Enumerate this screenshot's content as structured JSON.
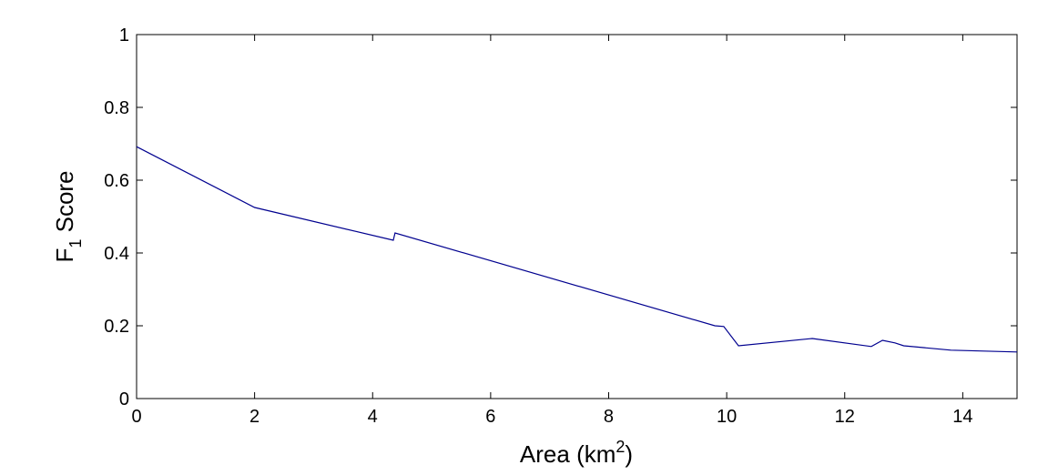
{
  "chart_data": {
    "type": "line",
    "xlabel": {
      "main": "Area (km",
      "sup": "2",
      "after": ")"
    },
    "ylabel": {
      "main": "F",
      "sub": "1",
      "after": " Score"
    },
    "series": [
      {
        "color": "#00008f",
        "x": [
          0,
          2,
          4.35,
          4.38,
          9.8,
          9.95,
          10.2,
          11.45,
          12.45,
          12.64,
          12.85,
          13.0,
          13.8,
          14.92
        ],
        "values": [
          0.692,
          0.525,
          0.435,
          0.455,
          0.2,
          0.198,
          0.145,
          0.165,
          0.143,
          0.16,
          0.153,
          0.145,
          0.133,
          0.128
        ]
      }
    ],
    "xlim": [
      0,
      14.92
    ],
    "ylim": [
      0,
      1
    ],
    "xticks": [
      0,
      2,
      4,
      6,
      8,
      10,
      12,
      14
    ],
    "yticks": [
      0,
      0.2,
      0.4,
      0.6,
      0.8,
      1
    ],
    "grid": false
  }
}
